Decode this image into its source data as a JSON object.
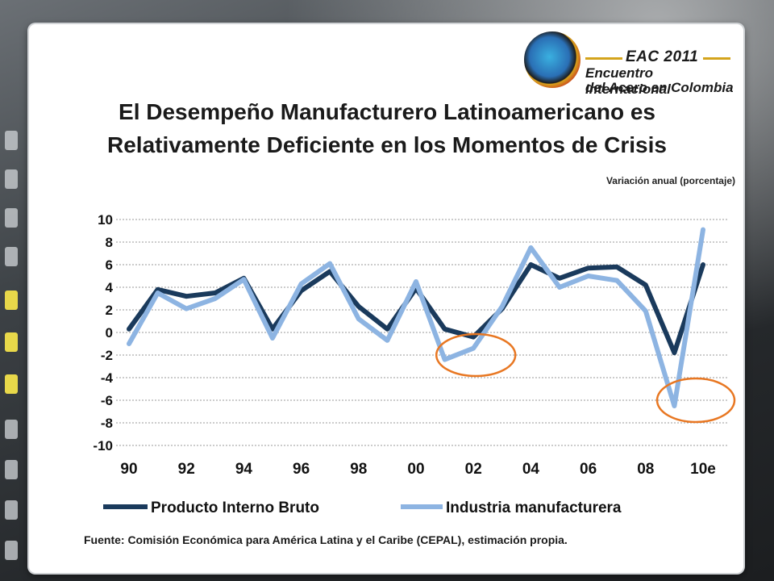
{
  "header": {
    "logo_line1": "EAC 2011",
    "logo_line2": "Encuentro Internacional",
    "logo_line3": "del Acero en Colombia"
  },
  "slide": {
    "title_line1": "El Desempeño Manufacturero Latinoamericano es",
    "title_line2": "Relativamente Deficiente en los Momentos de Crisis",
    "source": "Fuente: Comisión Económica para América Latina y el Caribe (CEPAL), estimación propia."
  },
  "chart_data": {
    "type": "line",
    "subtitle": "Variación anual (porcentaje)",
    "x": [
      "90",
      "91",
      "92",
      "93",
      "94",
      "95",
      "96",
      "97",
      "98",
      "99",
      "00",
      "01",
      "02",
      "03",
      "04",
      "05",
      "06",
      "07",
      "08",
      "09",
      "10e"
    ],
    "x_tick_labels": [
      "90",
      "92",
      "94",
      "96",
      "98",
      "00",
      "02",
      "04",
      "06",
      "08",
      "10e"
    ],
    "ylim": [
      -10,
      10
    ],
    "y_ticks": [
      10,
      8,
      6,
      4,
      2,
      0,
      -2,
      -4,
      -6,
      -8,
      -10
    ],
    "y_tick_labels": [
      "10",
      "8",
      "6",
      "4",
      "2",
      "0",
      "-2",
      "-4",
      "-6",
      "-8",
      "-10"
    ],
    "grid": true,
    "legend_position": "bottom",
    "series": [
      {
        "name": "Producto Interno Bruto",
        "color": "#1a3a5c",
        "values": [
          0.3,
          3.8,
          3.2,
          3.5,
          4.8,
          0.3,
          3.7,
          5.4,
          2.3,
          0.3,
          3.9,
          0.3,
          -0.4,
          2.1,
          6.0,
          4.8,
          5.7,
          5.8,
          4.2,
          -1.8,
          6.0
        ]
      },
      {
        "name": "Industria manufacturera",
        "color": "#8db4e2",
        "values": [
          -1.0,
          3.5,
          2.1,
          3.0,
          4.7,
          -0.5,
          4.3,
          6.1,
          1.2,
          -0.7,
          4.5,
          -2.4,
          -1.4,
          2.3,
          7.5,
          4.0,
          5.0,
          4.6,
          1.9,
          -6.5,
          9.1
        ]
      }
    ],
    "annotations": [
      {
        "shape": "ellipse",
        "color": "#e87722",
        "x_center": "02",
        "y_center": -2.0
      },
      {
        "shape": "ellipse",
        "color": "#e87722",
        "x_center": "10e",
        "y_center": -6.0
      }
    ]
  }
}
